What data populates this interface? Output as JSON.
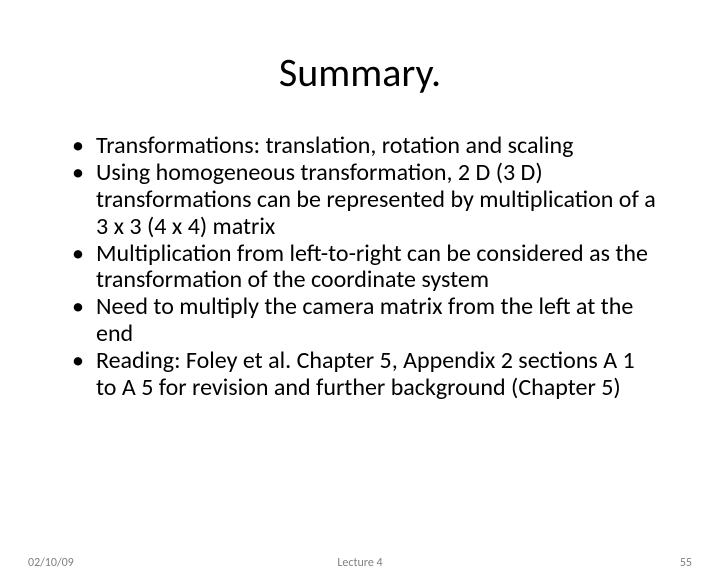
{
  "slide": {
    "title": "Summary.",
    "title_fontsize": 40,
    "title_color": "#000000",
    "background_color": "#ffffff",
    "bullets": [
      "Transformations:  translation, rotation and scaling",
      "Using homogeneous transformation, 2 D (3 D) transformations can be represented by multiplication of a 3 x 3 (4 x 4) matrix",
      "Multiplication from left-to-right can be considered as the transformation of the coordinate system",
      "Need to multiply the camera matrix from the left at the end",
      "Reading: Foley et al. Chapter 5, Appendix 2 sections A 1 to A 5 for revision and further background (Chapter 5)"
    ],
    "bullet_fontsize": 24,
    "bullet_color": "#000000"
  },
  "footer": {
    "date": "02/10/09",
    "center": "Lecture 4",
    "page": "55",
    "fontsize": 12,
    "color": "#808080"
  }
}
